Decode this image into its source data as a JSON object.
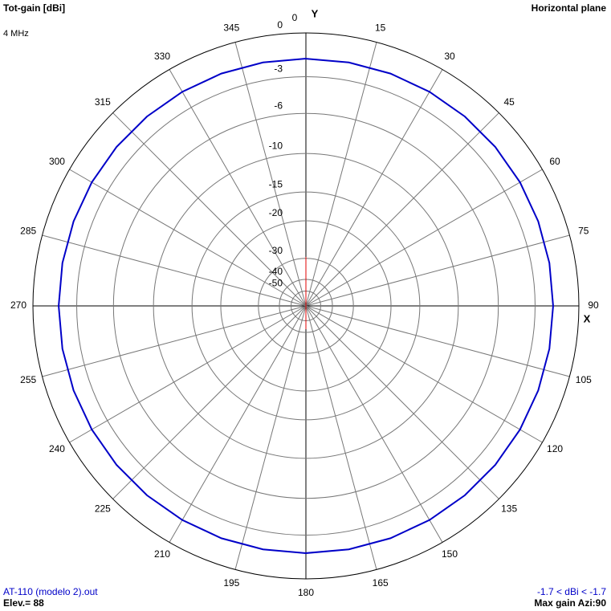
{
  "chart_data": {
    "type": "polar",
    "title": "Tot-gain [dBi]",
    "subtitle": "4 MHz",
    "plane": "Horizontal plane",
    "y_axis_label": "Y",
    "x_axis_label": "X",
    "file": "AT-110 (modelo 2).out",
    "elevation": "Elev.= 88",
    "range_text": "-1.7 < dBi < -1.7",
    "max_gain": "Max gain Azi:90",
    "rlim": [
      -50,
      0
    ],
    "rticks": [
      0,
      -3,
      -6,
      -10,
      -15,
      -20,
      -30,
      -40,
      -50
    ],
    "thetaticks": [
      0,
      15,
      30,
      45,
      60,
      75,
      90,
      105,
      120,
      135,
      150,
      165,
      180,
      195,
      210,
      225,
      240,
      255,
      270,
      285,
      300,
      315,
      330,
      345
    ],
    "series": [
      {
        "name": "AT-110 (modelo 2).out",
        "color": "#0000c8",
        "theta": [
          0,
          10,
          20,
          30,
          40,
          50,
          60,
          70,
          80,
          90,
          100,
          110,
          120,
          130,
          140,
          150,
          160,
          170,
          180,
          190,
          200,
          210,
          220,
          230,
          240,
          250,
          260,
          270,
          280,
          290,
          300,
          310,
          320,
          330,
          340,
          350
        ],
        "values": [
          -1.7,
          -1.7,
          -1.7,
          -1.7,
          -1.7,
          -1.7,
          -1.7,
          -1.7,
          -1.7,
          -1.7,
          -1.7,
          -1.7,
          -1.7,
          -1.7,
          -1.7,
          -1.7,
          -1.7,
          -1.7,
          -1.7,
          -1.7,
          -1.7,
          -1.7,
          -1.7,
          -1.7,
          -1.7,
          -1.7,
          -1.7,
          -1.7,
          -1.7,
          -1.7,
          -1.7,
          -1.7,
          -1.7,
          -1.7,
          -1.7,
          -1.7
        ]
      }
    ]
  }
}
